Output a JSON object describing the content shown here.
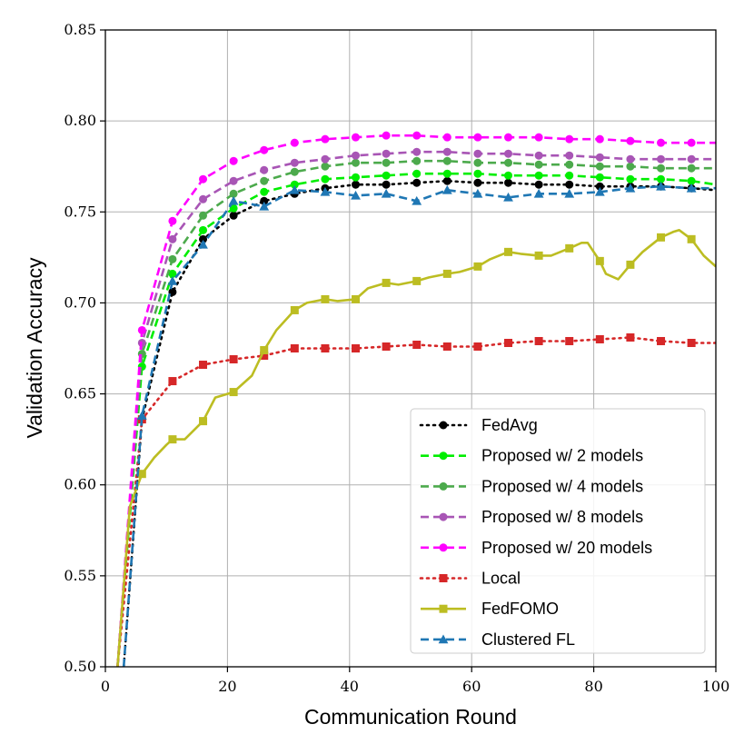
{
  "chart_data": {
    "type": "line",
    "title": "",
    "xlabel": "Communication Round",
    "ylabel": "Validation Accuracy",
    "xlim": [
      0,
      100
    ],
    "ylim": [
      0.5,
      0.85
    ],
    "xticks": [
      0,
      20,
      40,
      60,
      80,
      100
    ],
    "xtick_labels": [
      "0",
      "20",
      "40",
      "60",
      "80",
      "100"
    ],
    "yticks": [
      0.5,
      0.55,
      0.6,
      0.65,
      0.7,
      0.75,
      0.8,
      0.85
    ],
    "ytick_labels": [
      "0.50",
      "0.55",
      "0.60",
      "0.65",
      "0.70",
      "0.75",
      "0.80",
      "0.85"
    ],
    "grid": true,
    "legend_position": "lower-right",
    "series": [
      {
        "name": "FedAvg",
        "color": "#000000",
        "dash": "2,5",
        "marker": "circle",
        "x": [
          3,
          6,
          11,
          16,
          21,
          26,
          31,
          36,
          41,
          46,
          51,
          56,
          61,
          66,
          71,
          76,
          81,
          86,
          91,
          96,
          100
        ],
        "y": [
          0.5,
          0.636,
          0.706,
          0.735,
          0.748,
          0.756,
          0.76,
          0.763,
          0.765,
          0.765,
          0.766,
          0.767,
          0.766,
          0.766,
          0.765,
          0.765,
          0.764,
          0.764,
          0.764,
          0.763,
          0.762
        ],
        "marker_x": [
          6,
          11,
          16,
          21,
          26,
          31,
          36,
          41,
          46,
          51,
          56,
          61,
          66,
          71,
          76,
          81,
          86,
          91,
          96
        ]
      },
      {
        "name": "Proposed w/ 2 models",
        "color": "#00ee00",
        "dash": "9,5",
        "marker": "circle",
        "x": [
          2,
          6,
          11,
          16,
          21,
          26,
          31,
          36,
          41,
          46,
          51,
          56,
          61,
          66,
          71,
          76,
          81,
          86,
          91,
          96,
          100
        ],
        "y": [
          0.5,
          0.665,
          0.716,
          0.74,
          0.752,
          0.761,
          0.765,
          0.768,
          0.769,
          0.77,
          0.771,
          0.771,
          0.771,
          0.77,
          0.77,
          0.77,
          0.769,
          0.768,
          0.768,
          0.767,
          0.765
        ],
        "marker_x": [
          6,
          11,
          16,
          21,
          26,
          31,
          36,
          41,
          46,
          51,
          56,
          61,
          66,
          71,
          76,
          81,
          86,
          91,
          96
        ]
      },
      {
        "name": "Proposed w/ 4 models",
        "color": "#4caa4c",
        "dash": "9,5",
        "marker": "circle",
        "x": [
          2,
          6,
          11,
          16,
          21,
          26,
          31,
          36,
          41,
          46,
          51,
          56,
          61,
          66,
          71,
          76,
          81,
          86,
          91,
          96,
          100
        ],
        "y": [
          0.5,
          0.672,
          0.724,
          0.748,
          0.76,
          0.767,
          0.772,
          0.775,
          0.777,
          0.777,
          0.778,
          0.778,
          0.777,
          0.777,
          0.776,
          0.776,
          0.775,
          0.775,
          0.774,
          0.774,
          0.774
        ],
        "marker_x": [
          6,
          11,
          16,
          21,
          26,
          31,
          36,
          41,
          46,
          51,
          56,
          61,
          66,
          71,
          76,
          81,
          86,
          91,
          96
        ]
      },
      {
        "name": "Proposed w/ 8 models",
        "color": "#a855b5",
        "dash": "9,5",
        "marker": "circle",
        "x": [
          2,
          6,
          11,
          16,
          21,
          26,
          31,
          36,
          41,
          46,
          51,
          56,
          61,
          66,
          71,
          76,
          81,
          86,
          91,
          96,
          100
        ],
        "y": [
          0.5,
          0.678,
          0.735,
          0.757,
          0.767,
          0.773,
          0.777,
          0.779,
          0.781,
          0.782,
          0.783,
          0.783,
          0.782,
          0.782,
          0.781,
          0.781,
          0.78,
          0.779,
          0.779,
          0.779,
          0.779
        ],
        "marker_x": [
          6,
          11,
          16,
          21,
          26,
          31,
          36,
          41,
          46,
          51,
          56,
          61,
          66,
          71,
          76,
          81,
          86,
          91,
          96
        ]
      },
      {
        "name": "Proposed w/ 20 models",
        "color": "#ff00ff",
        "dash": "9,5",
        "marker": "circle",
        "x": [
          2,
          6,
          11,
          16,
          21,
          26,
          31,
          36,
          41,
          46,
          51,
          56,
          61,
          66,
          71,
          76,
          81,
          86,
          91,
          96,
          100
        ],
        "y": [
          0.5,
          0.685,
          0.745,
          0.768,
          0.778,
          0.784,
          0.788,
          0.79,
          0.791,
          0.792,
          0.792,
          0.791,
          0.791,
          0.791,
          0.791,
          0.79,
          0.79,
          0.789,
          0.788,
          0.788,
          0.788
        ],
        "marker_x": [
          6,
          11,
          16,
          21,
          26,
          31,
          36,
          41,
          46,
          51,
          56,
          61,
          66,
          71,
          76,
          81,
          86,
          91,
          96
        ]
      },
      {
        "name": "Local",
        "color": "#d62728",
        "dash": "2,5",
        "marker": "square",
        "x": [
          2,
          6,
          11,
          16,
          21,
          26,
          31,
          36,
          41,
          46,
          51,
          56,
          61,
          66,
          71,
          76,
          81,
          86,
          91,
          96,
          100
        ],
        "y": [
          0.5,
          0.636,
          0.657,
          0.666,
          0.669,
          0.671,
          0.675,
          0.675,
          0.675,
          0.676,
          0.677,
          0.676,
          0.676,
          0.678,
          0.679,
          0.679,
          0.68,
          0.681,
          0.679,
          0.678,
          0.678
        ],
        "marker_x": [
          6,
          11,
          16,
          21,
          26,
          31,
          36,
          41,
          46,
          51,
          56,
          61,
          66,
          71,
          76,
          81,
          86,
          91,
          96
        ]
      },
      {
        "name": "FedFOMO",
        "color": "#bcbd22",
        "dash": "",
        "marker": "square",
        "x": [
          2,
          4,
          6,
          8,
          10,
          11,
          13,
          16,
          18,
          21,
          24,
          26,
          28,
          31,
          33,
          36,
          38,
          41,
          43,
          46,
          48,
          51,
          53,
          56,
          58,
          61,
          63,
          66,
          68,
          71,
          73,
          76,
          78,
          79,
          81,
          82,
          84,
          86,
          88,
          91,
          93,
          94,
          96,
          98,
          100
        ],
        "y": [
          0.5,
          0.588,
          0.606,
          0.615,
          0.622,
          0.625,
          0.625,
          0.635,
          0.648,
          0.651,
          0.66,
          0.674,
          0.685,
          0.696,
          0.7,
          0.702,
          0.701,
          0.702,
          0.708,
          0.711,
          0.71,
          0.712,
          0.714,
          0.716,
          0.717,
          0.72,
          0.724,
          0.728,
          0.727,
          0.726,
          0.726,
          0.73,
          0.733,
          0.733,
          0.723,
          0.716,
          0.713,
          0.721,
          0.728,
          0.736,
          0.739,
          0.74,
          0.735,
          0.726,
          0.72
        ],
        "marker_x": [
          6,
          11,
          16,
          21,
          26,
          31,
          36,
          41,
          46,
          51,
          56,
          61,
          66,
          71,
          76,
          81,
          86,
          91,
          96
        ]
      },
      {
        "name": "Clustered FL",
        "color": "#1f77b4",
        "dash": "9,5",
        "marker": "triangle",
        "x": [
          3,
          6,
          11,
          16,
          21,
          26,
          31,
          36,
          41,
          46,
          51,
          56,
          61,
          66,
          71,
          76,
          81,
          86,
          91,
          96,
          100
        ],
        "y": [
          0.5,
          0.638,
          0.712,
          0.732,
          0.756,
          0.753,
          0.762,
          0.761,
          0.759,
          0.76,
          0.756,
          0.762,
          0.76,
          0.758,
          0.76,
          0.76,
          0.761,
          0.763,
          0.764,
          0.763,
          0.763
        ],
        "marker_x": [
          6,
          11,
          16,
          21,
          26,
          31,
          36,
          41,
          46,
          51,
          56,
          61,
          66,
          71,
          76,
          81,
          86,
          91,
          96
        ]
      }
    ]
  }
}
